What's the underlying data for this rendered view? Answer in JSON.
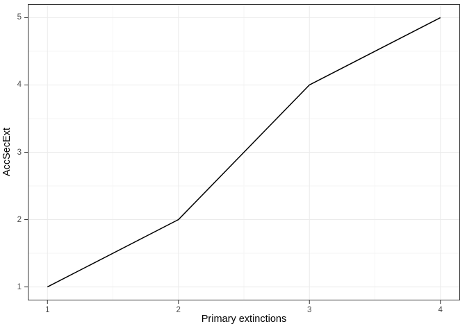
{
  "chart_data": {
    "type": "line",
    "title": "",
    "xlabel": "Primary extinctions",
    "ylabel": "AccSecExt",
    "x": [
      1,
      2,
      3,
      4
    ],
    "series": [
      {
        "name": "AccSecExt",
        "values": [
          1,
          2,
          4,
          5
        ]
      }
    ],
    "x_ticks": [
      1,
      2,
      3,
      4
    ],
    "y_ticks": [
      1,
      2,
      3,
      4,
      5
    ],
    "x_minor_ticks": [
      1.5,
      2.5,
      3.5
    ],
    "y_minor_ticks": [
      1.5,
      2.5,
      3.5,
      4.5
    ],
    "xlim": [
      0.85,
      4.15
    ],
    "ylim": [
      0.8,
      5.2
    ],
    "grid": "major-and-minor",
    "legend": "none",
    "colors": {
      "line": "#000000",
      "panel_border": "#333333",
      "grid_major": "#ebebeb",
      "grid_minor": "#f5f5f5",
      "tick": "#333333",
      "tick_label": "#4d4d4d",
      "axis_title": "#000000",
      "background": "#ffffff"
    }
  }
}
